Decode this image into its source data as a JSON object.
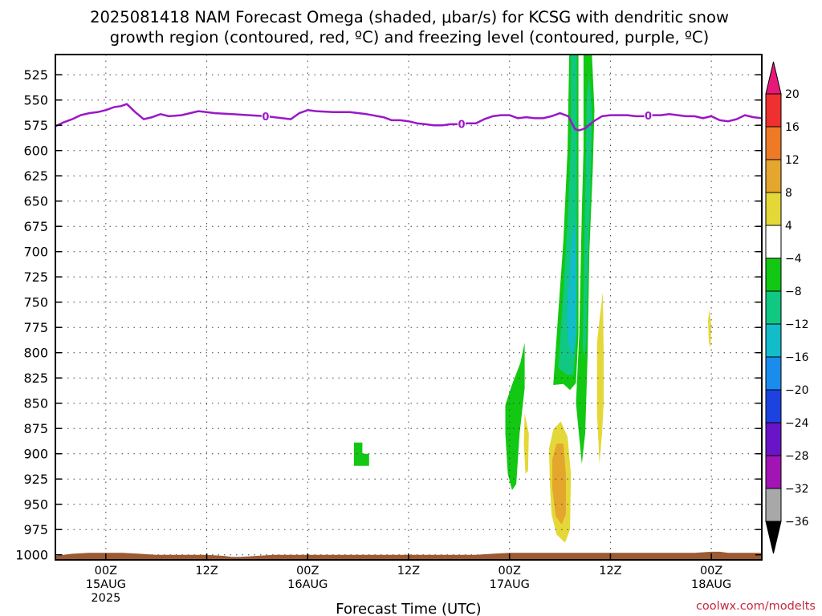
{
  "title": {
    "line1": "2025081418 NAM Forecast Omega (shaded, μbar/s) for KCSG with dendritic snow",
    "line2": "growth region (contoured, red, ºC) and freezing level (contoured, purple, ºC)"
  },
  "xlabel": "Forecast Time (UTC)",
  "credit": "coolwx.com/modelts",
  "colors": {
    "freezing_level": "#9a18c8",
    "terrain": "#9b5a32",
    "frame": "#000000"
  },
  "chart_data": {
    "type": "heatmap",
    "x_unit": "forecast hour from 2025-08-14 18Z",
    "xlim": [
      0,
      84
    ],
    "y_unit": "mb",
    "ylim": [
      1005,
      505
    ],
    "yticks": [
      525,
      550,
      575,
      600,
      625,
      650,
      675,
      700,
      725,
      750,
      775,
      800,
      825,
      850,
      875,
      900,
      925,
      950,
      975,
      1000
    ],
    "xticks": [
      {
        "hour": 6,
        "label": "00Z",
        "date": "15AUG",
        "year": "2025"
      },
      {
        "hour": 18,
        "label": "12Z"
      },
      {
        "hour": 30,
        "label": "00Z",
        "date": "16AUG"
      },
      {
        "hour": 42,
        "label": "12Z"
      },
      {
        "hour": 54,
        "label": "00Z",
        "date": "17AUG"
      },
      {
        "hour": 66,
        "label": "12Z"
      },
      {
        "hour": 78,
        "label": "00Z",
        "date": "18AUG"
      }
    ],
    "colorbar": {
      "labels": [
        "20",
        "16",
        "12",
        "8",
        "4",
        "−4",
        "−8",
        "−12",
        "−16",
        "−20",
        "−24",
        "−28",
        "−32",
        "−36"
      ],
      "bins": [
        {
          "from": 20,
          "to": null,
          "color": "#e8187a"
        },
        {
          "from": 16,
          "to": 20,
          "color": "#ee3030"
        },
        {
          "from": 12,
          "to": 16,
          "color": "#ee7a26"
        },
        {
          "from": 8,
          "to": 12,
          "color": "#e4a62c"
        },
        {
          "from": 4,
          "to": 8,
          "color": "#e4d838"
        },
        {
          "from": -4,
          "to": 4,
          "color": "#ffffff"
        },
        {
          "from": -8,
          "to": -4,
          "color": "#12c812"
        },
        {
          "from": -12,
          "to": -8,
          "color": "#10c882"
        },
        {
          "from": -16,
          "to": -12,
          "color": "#12bcc8"
        },
        {
          "from": -20,
          "to": -16,
          "color": "#1a8cee"
        },
        {
          "from": -24,
          "to": -20,
          "color": "#1c42e0"
        },
        {
          "from": -28,
          "to": -24,
          "color": "#6a14c8"
        },
        {
          "from": -32,
          "to": -28,
          "color": "#a214b4"
        },
        {
          "from": -36,
          "to": -32,
          "color": "#a8a8a8"
        },
        {
          "from": null,
          "to": -36,
          "color": "#000000"
        }
      ]
    },
    "freezing_level_series": {
      "contour_label": "0",
      "label_hours": [
        25,
        48.3,
        70.5
      ],
      "x": [
        0,
        1,
        2,
        3,
        4,
        5,
        6,
        7,
        7.8,
        8.5,
        9.5,
        10.5,
        11.5,
        12.5,
        13.5,
        15,
        17,
        19,
        21,
        23,
        25,
        27,
        28,
        29,
        30,
        31,
        33,
        35,
        37,
        39,
        40,
        41,
        42,
        43,
        44,
        45,
        46,
        47,
        48,
        49,
        50,
        51,
        52,
        53,
        54,
        55,
        56,
        57,
        58,
        59,
        60,
        61,
        61.8,
        62.3,
        63,
        64,
        65,
        66,
        67,
        68,
        69,
        70,
        71,
        72,
        73,
        74,
        75,
        76,
        77,
        78,
        79,
        80,
        81,
        82,
        83,
        84
      ],
      "y": [
        576,
        572,
        569,
        565,
        563,
        562,
        560,
        557,
        556,
        554,
        562,
        569,
        567,
        564,
        566,
        565,
        561,
        563,
        564,
        565,
        566,
        568,
        569,
        563,
        560,
        561,
        562,
        562,
        564,
        567,
        570,
        570,
        571,
        573,
        574,
        575,
        575,
        574,
        574,
        573,
        573,
        569,
        566,
        565,
        565,
        568,
        567,
        568,
        568,
        566,
        563,
        566,
        579,
        580,
        578,
        571,
        566,
        565,
        565,
        565,
        566,
        566,
        565,
        565,
        564,
        565,
        566,
        566,
        568,
        566,
        570,
        571,
        569,
        565,
        567,
        568
      ]
    },
    "terrain_surface": {
      "x": [
        0,
        2,
        4,
        6,
        8,
        10,
        12,
        14,
        16,
        18,
        20,
        21,
        22,
        24,
        26,
        28,
        30,
        35,
        40,
        45,
        48,
        50,
        52,
        54,
        56,
        58,
        60,
        62,
        64,
        66,
        68,
        70,
        72,
        74,
        76,
        78,
        79,
        80,
        82,
        84
      ],
      "p": [
        1001,
        999,
        998,
        998,
        998,
        999,
        1000,
        1000,
        1000,
        1000,
        1001,
        1002,
        1002,
        1001,
        1000,
        1000,
        1000,
        1000,
        1000,
        1000,
        1000,
        1000,
        999,
        998,
        998,
        998,
        998,
        998,
        998,
        998,
        998,
        998,
        998,
        998,
        998,
        997,
        997,
        998,
        998,
        998
      ]
    },
    "omega_regions": [
      {
        "value_bin": -8,
        "points": [
          [
            35.5,
            889
          ],
          [
            36.5,
            889
          ],
          [
            36.5,
            900
          ],
          [
            37.3,
            900
          ],
          [
            37.3,
            912
          ],
          [
            35.5,
            912
          ]
        ]
      },
      {
        "value_bin": -8,
        "points": [
          [
            53.5,
            852
          ],
          [
            54.2,
            834
          ],
          [
            55.3,
            810
          ],
          [
            55.8,
            790
          ],
          [
            55.8,
            835
          ],
          [
            55.2,
            880
          ],
          [
            54.8,
            930
          ],
          [
            54.3,
            936
          ],
          [
            53.8,
            920
          ],
          [
            53.5,
            880
          ]
        ]
      },
      {
        "value_bin": -8,
        "points": [
          [
            59.2,
            832
          ],
          [
            59.8,
            760
          ],
          [
            60.4,
            690
          ],
          [
            60.9,
            600
          ],
          [
            61.1,
            505
          ],
          [
            62.2,
            505
          ],
          [
            62.2,
            610
          ],
          [
            62.2,
            700
          ],
          [
            62.2,
            780
          ],
          [
            61.9,
            830
          ],
          [
            61.2,
            837
          ],
          [
            60.4,
            831
          ]
        ]
      },
      {
        "value_bin": -8,
        "points": [
          [
            61.9,
            850
          ],
          [
            62.3,
            780
          ],
          [
            62.6,
            660
          ],
          [
            62.8,
            600
          ],
          [
            62.8,
            505
          ],
          [
            63.8,
            505
          ],
          [
            64.1,
            560
          ],
          [
            63.9,
            620
          ],
          [
            63.5,
            700
          ],
          [
            63.3,
            800
          ],
          [
            63.0,
            880
          ],
          [
            62.6,
            910
          ]
        ]
      },
      {
        "value_bin": -12,
        "points": [
          [
            59.8,
            815
          ],
          [
            60.4,
            740
          ],
          [
            61.0,
            655
          ],
          [
            61.3,
            590
          ],
          [
            61.3,
            505
          ],
          [
            62.0,
            505
          ],
          [
            62.0,
            610
          ],
          [
            62.0,
            700
          ],
          [
            62.0,
            780
          ],
          [
            61.6,
            822
          ],
          [
            60.8,
            822
          ]
        ]
      },
      {
        "value_bin": -12,
        "points": [
          [
            62.7,
            795
          ],
          [
            62.9,
            690
          ],
          [
            63.1,
            600
          ],
          [
            63.2,
            545
          ],
          [
            63.5,
            525
          ],
          [
            63.8,
            565
          ],
          [
            63.6,
            640
          ],
          [
            63.3,
            720
          ],
          [
            63.1,
            790
          ],
          [
            62.9,
            805
          ]
        ]
      },
      {
        "value_bin": -16,
        "points": [
          [
            60.8,
            760
          ],
          [
            61.4,
            690
          ],
          [
            61.8,
            668
          ],
          [
            62.0,
            720
          ],
          [
            61.9,
            780
          ],
          [
            61.5,
            805
          ],
          [
            61.0,
            790
          ]
        ]
      },
      {
        "value_bin": 4,
        "points": [
          [
            55.8,
            860
          ],
          [
            56.3,
            880
          ],
          [
            56.2,
            917
          ],
          [
            55.9,
            920
          ],
          [
            55.7,
            890
          ]
        ]
      },
      {
        "value_bin": 4,
        "points": [
          [
            58.7,
            895
          ],
          [
            59.2,
            876
          ],
          [
            60.1,
            868
          ],
          [
            60.9,
            883
          ],
          [
            61.3,
            920
          ],
          [
            61.2,
            975
          ],
          [
            60.6,
            988
          ],
          [
            59.6,
            980
          ],
          [
            59.0,
            960
          ],
          [
            58.8,
            930
          ]
        ]
      },
      {
        "value_bin": 8,
        "points": [
          [
            59.1,
            905
          ],
          [
            59.6,
            890
          ],
          [
            60.4,
            890
          ],
          [
            60.7,
            920
          ],
          [
            60.7,
            960
          ],
          [
            60.2,
            970
          ],
          [
            59.5,
            962
          ],
          [
            59.1,
            935
          ]
        ]
      },
      {
        "value_bin": 4,
        "points": [
          [
            64.4,
            790
          ],
          [
            64.8,
            760
          ],
          [
            65.1,
            740
          ],
          [
            65.2,
            800
          ],
          [
            65.2,
            850
          ],
          [
            65.0,
            880
          ],
          [
            64.7,
            910
          ],
          [
            64.4,
            860
          ]
        ]
      },
      {
        "value_bin": 4,
        "points": [
          [
            77.6,
            768
          ],
          [
            77.8,
            757
          ],
          [
            78.0,
            775
          ],
          [
            77.9,
            795
          ],
          [
            77.7,
            790
          ]
        ]
      }
    ]
  }
}
